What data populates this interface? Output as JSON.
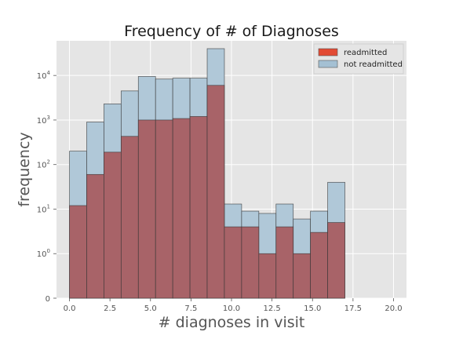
{
  "chart_data": {
    "type": "bar",
    "title": "Frequency of # of Diagnoses",
    "xlabel": "# diagnoses in visit",
    "ylabel": "frequency",
    "xlim": [
      -0.8,
      20.8
    ],
    "ylim": [
      0,
      60000
    ],
    "y_scale": "symlog",
    "grid": true,
    "legend_position": "top-right",
    "bin_edges": [
      0,
      1.0625,
      2.125,
      3.1875,
      4.25,
      5.3125,
      6.375,
      7.4375,
      8.5,
      9.5625,
      10.625,
      11.6875,
      12.75,
      13.8125,
      14.875,
      15.9375,
      17
    ],
    "series": [
      {
        "name": "readmitted",
        "color": "#a86368",
        "legend_color": "#e24a33",
        "values": [
          12,
          60,
          190,
          430,
          1000,
          1000,
          1080,
          1200,
          6000,
          4,
          4,
          1,
          4,
          1,
          3,
          5
        ]
      },
      {
        "name": "not readmitted",
        "color": "#b0c8d8",
        "legend_color": "#a4c0d3",
        "values": [
          200,
          900,
          2300,
          4500,
          9500,
          8300,
          8700,
          8700,
          40000,
          13,
          9,
          8,
          13,
          6,
          9,
          40
        ]
      }
    ],
    "x_ticks": [
      {
        "value": 0.0,
        "label": "0.0"
      },
      {
        "value": 2.5,
        "label": "2.5"
      },
      {
        "value": 5.0,
        "label": "5.0"
      },
      {
        "value": 7.5,
        "label": "7.5"
      },
      {
        "value": 10.0,
        "label": "10.0"
      },
      {
        "value": 12.5,
        "label": "12.5"
      },
      {
        "value": 15.0,
        "label": "15.0"
      },
      {
        "value": 17.5,
        "label": "17.5"
      },
      {
        "value": 20.0,
        "label": "20.0"
      }
    ],
    "y_ticks": [
      {
        "value": 0,
        "base": "0",
        "exp": ""
      },
      {
        "value": 1,
        "base": "10",
        "exp": "0"
      },
      {
        "value": 10,
        "base": "10",
        "exp": "1"
      },
      {
        "value": 100,
        "base": "10",
        "exp": "2"
      },
      {
        "value": 1000,
        "base": "10",
        "exp": "3"
      },
      {
        "value": 10000,
        "base": "10",
        "exp": "4"
      }
    ]
  }
}
